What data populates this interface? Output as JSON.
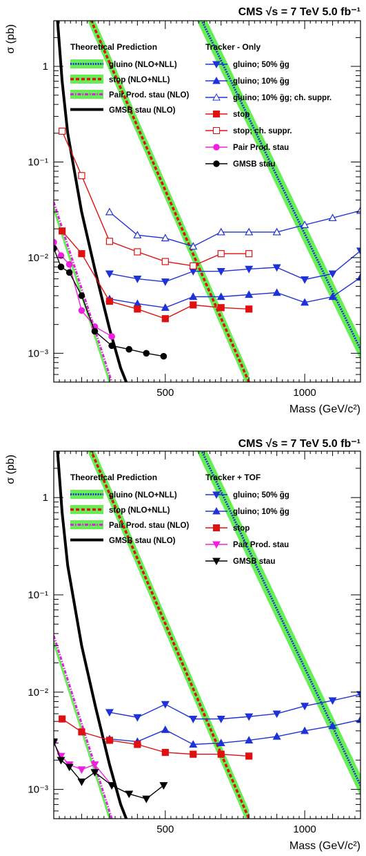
{
  "chart_data": [
    {
      "type": "line",
      "title": "CMS   √s = 7 TeV   5.0 fb⁻¹",
      "xlabel": "Mass (GeV/c²)",
      "ylabel": "σ (pb)",
      "xlim": [
        100,
        1200
      ],
      "ylim": [
        0.0005,
        3
      ],
      "yscale": "log",
      "x_ticks": [
        "500",
        "1000"
      ],
      "y_ticks": [
        "10⁻³",
        "10⁻²",
        "10⁻¹",
        "1"
      ],
      "legend_theory_header": "Theoretical Prediction",
      "legend_data_header": "Tracker - Only",
      "theory": [
        {
          "name": "gluino (NLO+NLL)",
          "color": "#1e32d8",
          "band": "#66ee55",
          "style": "dotted",
          "x": [
            300,
            1200
          ],
          "y": [
            300,
            0.0011
          ],
          "width": 0.11
        },
        {
          "name": "stop (NLO+NLL)",
          "color": "#e01010",
          "band": "#66ee55",
          "style": "dashed",
          "x": [
            130,
            800
          ],
          "y": [
            15,
            0.0005
          ],
          "width": 0.09
        },
        {
          "name": "Pair Prod. stau (NLO)",
          "color": "#e020e0",
          "band": "#66ee55",
          "style": "dashdot",
          "x": [
            100,
            308
          ],
          "y": [
            0.038,
            0.0005
          ],
          "width": 0
        },
        {
          "name": "GMSB stau (NLO)",
          "color": "#000000",
          "band": "",
          "style": "solid",
          "x": [
            100,
            130,
            150,
            200,
            250,
            300,
            340,
            360
          ],
          "y": [
            10,
            0.7,
            0.2,
            0.03,
            0.007,
            0.0018,
            0.0007,
            0.0005
          ],
          "width": 0
        }
      ],
      "series": [
        {
          "name": "gluino; 50% g̃g",
          "color": "#1e32d8",
          "marker": "tri-down",
          "filled": true,
          "x": [
            300,
            400,
            500,
            600,
            700,
            800,
            900,
            1000,
            1100,
            1200
          ],
          "y": [
            0.0068,
            0.006,
            0.0056,
            0.0072,
            0.0072,
            0.0076,
            0.0079,
            0.0059,
            0.0068,
            0.0118
          ]
        },
        {
          "name": "gluino; 10% g̃g",
          "color": "#1e32d8",
          "marker": "tri-up",
          "filled": true,
          "x": [
            300,
            400,
            500,
            600,
            700,
            800,
            900,
            1000,
            1100,
            1200
          ],
          "y": [
            0.0037,
            0.0033,
            0.003,
            0.0039,
            0.0039,
            0.0041,
            0.0043,
            0.0034,
            0.0039,
            0.0062
          ]
        },
        {
          "name": "gluino; 10% g̃g; ch. suppr.",
          "color": "#1e32d8",
          "marker": "tri-up",
          "filled": false,
          "x": [
            300,
            400,
            500,
            600,
            700,
            800,
            900,
            1000,
            1100,
            1200
          ],
          "y": [
            0.03,
            0.0172,
            0.016,
            0.0131,
            0.0185,
            0.0185,
            0.0185,
            0.022,
            0.026,
            0.031
          ]
        },
        {
          "name": "stop",
          "color": "#e01010",
          "marker": "square",
          "filled": true,
          "x": [
            130,
            200,
            300,
            400,
            500,
            600,
            700,
            800
          ],
          "y": [
            0.019,
            0.011,
            0.0035,
            0.0029,
            0.0023,
            0.0032,
            0.003,
            0.0029
          ]
        },
        {
          "name": "stop; ch. suppr.",
          "color": "#e01010",
          "marker": "square",
          "filled": false,
          "x": [
            130,
            200,
            300,
            400,
            500,
            600,
            700,
            800
          ],
          "y": [
            0.21,
            0.072,
            0.0148,
            0.0115,
            0.0091,
            0.0082,
            0.011,
            0.011
          ]
        },
        {
          "name": "Pair Prod. stau",
          "color": "#f020e0",
          "marker": "circle",
          "filled": true,
          "x": [
            100,
            126,
            156,
            200,
            247,
            308
          ],
          "y": [
            0.0145,
            0.0105,
            0.0085,
            0.0028,
            0.0019,
            0.0015
          ]
        },
        {
          "name": "GMSB stau",
          "color": "#000000",
          "marker": "circle",
          "filled": true,
          "x": [
            100,
            126,
            156,
            200,
            247,
            308,
            370,
            432,
            494
          ],
          "y": [
            0.0125,
            0.008,
            0.007,
            0.004,
            0.0017,
            0.0012,
            0.0011,
            0.001,
            0.00093
          ]
        }
      ]
    },
    {
      "type": "line",
      "title": "CMS   √s = 7 TeV   5.0 fb⁻¹",
      "xlabel": "Mass (GeV/c²)",
      "ylabel": "σ (pb)",
      "xlim": [
        100,
        1200
      ],
      "ylim": [
        0.0005,
        3
      ],
      "yscale": "log",
      "x_ticks": [
        "500",
        "1000"
      ],
      "y_ticks": [
        "10⁻³",
        "10⁻²",
        "10⁻¹",
        "1"
      ],
      "legend_theory_header": "Theoretical Prediction",
      "legend_data_header": "Tracker + TOF",
      "theory": [
        {
          "name": "gluino (NLO+NLL)",
          "color": "#1e32d8",
          "band": "#66ee55",
          "style": "dotted",
          "x": [
            300,
            1200
          ],
          "y": [
            300,
            0.0011
          ],
          "width": 0.11
        },
        {
          "name": "stop (NLO+NLL)",
          "color": "#e01010",
          "band": "#66ee55",
          "style": "dashed",
          "x": [
            130,
            800
          ],
          "y": [
            15,
            0.0005
          ],
          "width": 0.09
        },
        {
          "name": "Pair Prod. stau (NLO)",
          "color": "#e020e0",
          "band": "#66ee55",
          "style": "dashdot",
          "x": [
            100,
            308
          ],
          "y": [
            0.038,
            0.0005
          ],
          "width": 0
        },
        {
          "name": "GMSB stau (NLO)",
          "color": "#000000",
          "band": "",
          "style": "solid",
          "x": [
            100,
            130,
            150,
            200,
            250,
            300,
            340,
            360
          ],
          "y": [
            10,
            0.7,
            0.2,
            0.03,
            0.007,
            0.0018,
            0.0007,
            0.0005
          ],
          "width": 0
        }
      ],
      "series": [
        {
          "name": "gluino; 50% g̃g",
          "color": "#1e32d8",
          "marker": "tri-down",
          "filled": true,
          "x": [
            300,
            400,
            500,
            600,
            700,
            800,
            900,
            1000,
            1100,
            1200
          ],
          "y": [
            0.0062,
            0.0055,
            0.0075,
            0.0053,
            0.0053,
            0.0056,
            0.006,
            0.0072,
            0.0082,
            0.0095
          ]
        },
        {
          "name": "gluino; 10% g̃g",
          "color": "#1e32d8",
          "marker": "tri-up",
          "filled": true,
          "x": [
            300,
            400,
            500,
            600,
            700,
            800,
            900,
            1000,
            1100,
            1200
          ],
          "y": [
            0.0033,
            0.0031,
            0.0041,
            0.0029,
            0.003,
            0.0032,
            0.0035,
            0.004,
            0.0045,
            0.0052
          ]
        },
        {
          "name": "stop",
          "color": "#e01010",
          "marker": "square",
          "filled": true,
          "x": [
            130,
            200,
            300,
            400,
            500,
            600,
            700,
            800
          ],
          "y": [
            0.0053,
            0.0039,
            0.0032,
            0.0029,
            0.0024,
            0.0023,
            0.0023,
            0.0022
          ]
        },
        {
          "name": "Pair Prod. stau",
          "color": "#f020e0",
          "marker": "tri-down",
          "filled": true,
          "x": [
            100,
            126,
            156,
            200,
            247,
            308
          ],
          "y": [
            0.003,
            0.0022,
            0.0018,
            0.0016,
            0.0018,
            0.0011
          ]
        },
        {
          "name": "GMSB stau",
          "color": "#000000",
          "marker": "tri-down",
          "filled": true,
          "x": [
            100,
            126,
            156,
            200,
            247,
            308,
            370,
            432,
            494
          ],
          "y": [
            0.0031,
            0.002,
            0.0017,
            0.0012,
            0.0015,
            0.0011,
            0.0009,
            0.0008,
            0.0011
          ]
        }
      ]
    }
  ]
}
